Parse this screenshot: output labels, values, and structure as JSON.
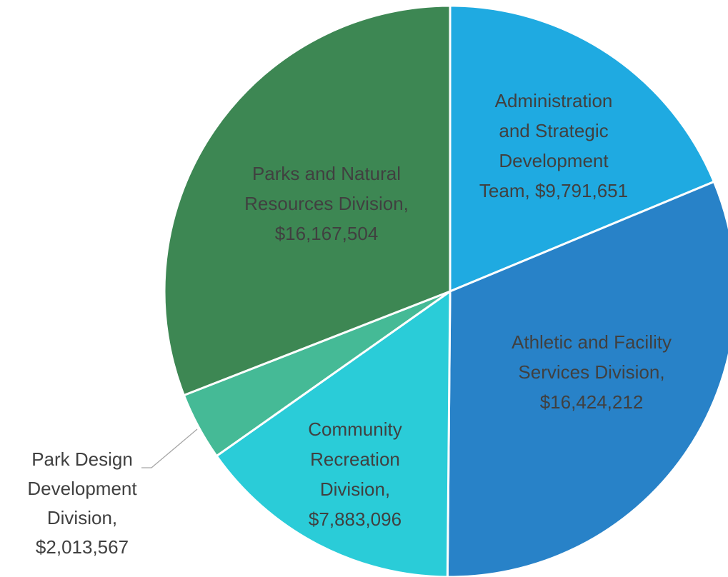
{
  "chart_data": {
    "type": "pie",
    "title": "",
    "series": [
      {
        "values": [
          9791651,
          16424212,
          7883096,
          2013567,
          16167504
        ]
      }
    ],
    "categories": [
      "Administration and Strategic Development Team",
      "Athletic and Facility Services Division",
      "Community Recreation Division",
      "Park Design Development Division",
      "Parks and Natural Resources Division"
    ],
    "slices": [
      {
        "label": "Administration and Strategic Development Team",
        "value": 9791651,
        "value_label": "$9,791,651",
        "data_label_lines": [
          "Administration",
          "and Strategic",
          "Development",
          "Team,  $9,791,651"
        ],
        "color": "#1FAAE1"
      },
      {
        "label": "Athletic and Facility Services Division",
        "value": 16424212,
        "value_label": "$16,424,212",
        "data_label_lines": [
          "Athletic and Facility",
          "Services Division,",
          "$16,424,212"
        ],
        "color": "#2882C8"
      },
      {
        "label": "Community Recreation Division",
        "value": 7883096,
        "value_label": "$7,883,096",
        "data_label_lines": [
          "Community",
          "Recreation",
          "Division,",
          "$7,883,096"
        ],
        "color": "#2ACCD8"
      },
      {
        "label": "Park Design Development Division",
        "value": 2013567,
        "value_label": "$2,013,567",
        "data_label_lines": [
          "Park Design",
          "Development",
          "Division,",
          "$2,013,567"
        ],
        "color": "#45BA96"
      },
      {
        "label": "Parks and Natural Resources Division",
        "value": 16167504,
        "value_label": "$16,167,504",
        "data_label_lines": [
          "Parks and Natural",
          "Resources Division,",
          "$16,167,504"
        ],
        "color": "#3D8753"
      }
    ],
    "legend": "none",
    "data_labels": "category-and-value"
  }
}
